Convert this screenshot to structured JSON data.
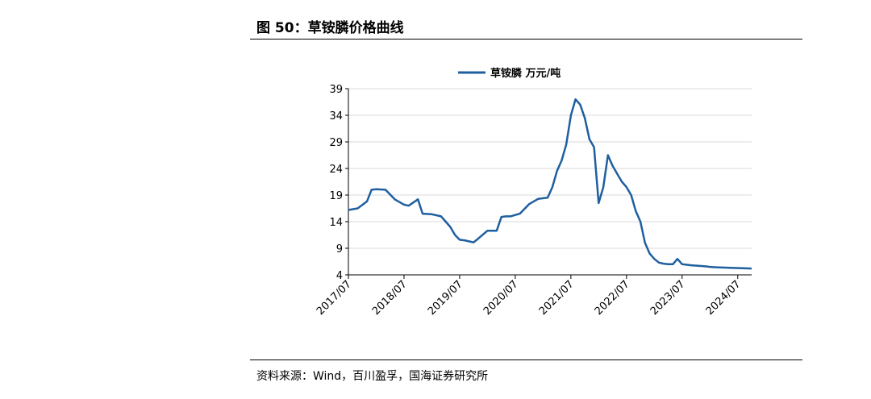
{
  "figure": {
    "title": "图 50：草铵膦价格曲线",
    "source": "资料来源：Wind，百川盈孚，国海证券研究所"
  },
  "colors": {
    "series": "#1F5FA0",
    "grid": "#D9D9D9",
    "axis": "#000000"
  },
  "chart_data": {
    "type": "line",
    "title": "",
    "xlabel": "",
    "ylabel": "",
    "ylim": [
      4,
      39
    ],
    "yticks": [
      "4",
      "9",
      "14",
      "19",
      "24",
      "29",
      "34",
      "39"
    ],
    "xticks": [
      "2017/07",
      "2018/07",
      "2019/07",
      "2020/07",
      "2021/07",
      "2022/07",
      "2023/07",
      "2024/07"
    ],
    "x_range": [
      "2017-07",
      "2024-10"
    ],
    "grid": "horizontal",
    "legend": {
      "position": "top-center",
      "label": "草铵膦  万元/吨"
    },
    "series": [
      {
        "name": "草铵膦  万元/吨",
        "x": [
          "2017-07",
          "2017-09",
          "2017-11",
          "2017-12",
          "2018-01",
          "2018-03",
          "2018-05",
          "2018-07",
          "2018-08",
          "2018-10",
          "2018-11",
          "2019-01",
          "2019-03",
          "2019-04",
          "2019-05",
          "2019-06",
          "2019-07",
          "2019-08",
          "2019-09",
          "2019-10",
          "2019-11",
          "2020-01",
          "2020-03",
          "2020-04",
          "2020-05",
          "2020-06",
          "2020-08",
          "2020-10",
          "2020-12",
          "2021-02",
          "2021-03",
          "2021-04",
          "2021-05",
          "2021-06",
          "2021-07",
          "2021-08",
          "2021-09",
          "2021-10",
          "2021-11",
          "2021-12",
          "2022-01",
          "2022-02",
          "2022-03",
          "2022-04",
          "2022-05",
          "2022-06",
          "2022-07",
          "2022-08",
          "2022-09",
          "2022-10",
          "2022-11",
          "2022-12",
          "2023-01",
          "2023-02",
          "2023-03",
          "2023-04",
          "2023-05",
          "2023-06",
          "2023-07",
          "2023-09",
          "2023-12",
          "2024-01",
          "2024-03",
          "2024-06",
          "2024-10"
        ],
        "values": [
          16.2,
          16.5,
          17.8,
          20.0,
          20.1,
          20.0,
          18.2,
          17.2,
          17.0,
          18.2,
          15.5,
          15.4,
          15.0,
          14.0,
          13.0,
          11.5,
          10.6,
          10.5,
          10.3,
          10.1,
          10.8,
          12.3,
          12.3,
          14.9,
          15.0,
          15.0,
          15.5,
          17.3,
          18.3,
          18.5,
          20.5,
          23.5,
          25.5,
          28.5,
          34.0,
          37.0,
          36.0,
          33.5,
          29.5,
          28.0,
          17.5,
          20.5,
          26.5,
          24.5,
          23.0,
          21.5,
          20.5,
          19.0,
          16.0,
          14.0,
          10.0,
          8.0,
          7.0,
          6.3,
          6.1,
          6.0,
          6.0,
          7.0,
          6.0,
          5.8,
          5.6,
          5.5,
          5.4,
          5.3,
          5.2
        ]
      }
    ]
  }
}
